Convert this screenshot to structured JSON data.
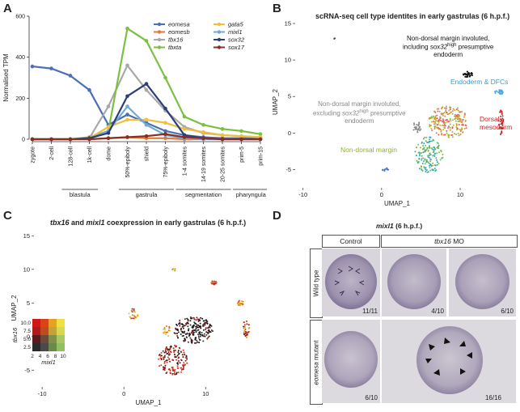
{
  "panel_letters": {
    "a": "A",
    "b": "B",
    "c": "C",
    "d": "D"
  },
  "chart_data": [
    {
      "type": "line",
      "ylabel": "Normalised TPM",
      "ylim": [
        0,
        600
      ],
      "yticks": [
        0,
        200,
        400,
        600
      ],
      "x": [
        "zygote",
        "2-cell",
        "128-cell",
        "1k-cell",
        "dome",
        "50%-epiboly",
        "shield",
        "75%-epiboly",
        "1-4 somites",
        "14-19 somites",
        "20-25 somites",
        "prim-5",
        "prim-15"
      ],
      "stage_groups": [
        {
          "label": "blastula",
          "from": "128-cell",
          "to": "1k-cell"
        },
        {
          "label": "gastrula",
          "from": "50%-epiboly",
          "to": "75%-epiboly"
        },
        {
          "label": "segmentation",
          "from": "1-4 somites",
          "to": "20-25 somites"
        },
        {
          "label": "pharyngula",
          "from": "prim-5",
          "to": "prim-15"
        }
      ],
      "legend_position": "top-right",
      "series": [
        {
          "name": "eomesa",
          "color": "#4a6fb5",
          "values": [
            355,
            345,
            310,
            240,
            70,
            120,
            80,
            40,
            20,
            10,
            5,
            5,
            5
          ]
        },
        {
          "name": "eomesb",
          "color": "#e07a3a",
          "values": [
            0,
            0,
            0,
            0,
            5,
            10,
            5,
            5,
            0,
            0,
            0,
            0,
            0
          ]
        },
        {
          "name": "tbx16",
          "color": "#a8a8a8",
          "values": [
            0,
            0,
            0,
            5,
            160,
            360,
            240,
            140,
            60,
            30,
            20,
            15,
            10
          ]
        },
        {
          "name": "tbxta",
          "color": "#7ac142",
          "values": [
            0,
            0,
            0,
            10,
            40,
            540,
            480,
            300,
            110,
            70,
            50,
            40,
            25
          ]
        },
        {
          "name": "gata5",
          "color": "#f2c038",
          "values": [
            0,
            0,
            0,
            5,
            60,
            95,
            95,
            80,
            50,
            35,
            20,
            15,
            10
          ]
        },
        {
          "name": "mixl1",
          "color": "#6fa8dc",
          "values": [
            0,
            0,
            0,
            5,
            40,
            160,
            70,
            20,
            5,
            0,
            0,
            0,
            0
          ]
        },
        {
          "name": "sox32",
          "color": "#2c3e7a",
          "values": [
            0,
            0,
            0,
            5,
            30,
            210,
            270,
            150,
            20,
            5,
            0,
            0,
            0
          ]
        },
        {
          "name": "sox17",
          "color": "#8b2e1f",
          "values": [
            0,
            0,
            0,
            0,
            5,
            10,
            15,
            25,
            10,
            5,
            0,
            0,
            0
          ]
        }
      ]
    },
    {
      "type": "scatter",
      "title": "scRNA-seq cell type identites in early gastrulas (6 h.p.f.)",
      "xlabel": "UMAP_1",
      "ylabel": "UMAP_2",
      "xlim": [
        -11,
        17
      ],
      "ylim": [
        -7.5,
        16
      ],
      "xticks": [
        -10,
        0,
        10
      ],
      "yticks": [
        -5,
        0,
        5,
        10,
        15
      ],
      "clusters": [
        {
          "name": "Non-dorsal margin",
          "color": "#8db32a"
        },
        {
          "name": "Endoderm & DFCs",
          "color": "#4aa8e0"
        },
        {
          "name": "Dorsal mesoderm",
          "color": "#cc2222"
        },
        {
          "name": "Non-dorsal margin involuted, including sox32 high presumptive endoderm",
          "color": "#111111"
        },
        {
          "name": "Non-dorsal margin involuted, excluding sox32 high presumptive endoderm",
          "color": "#888888"
        }
      ]
    },
    {
      "type": "scatter",
      "title": "tbx16 and mixl1 coexpression in early gastrulas (6 h.p.f.)",
      "xlabel": "UMAP_1",
      "ylabel": "UMAP_2",
      "xlim": [
        -11,
        17
      ],
      "ylim": [
        -7.5,
        16
      ],
      "xticks": [
        -10,
        0,
        10
      ],
      "yticks": [
        -5,
        0,
        5,
        10,
        15
      ],
      "colorkey": {
        "xlabel": "mixl1",
        "ylabel": "tbx16",
        "xticks": [
          2,
          4,
          6,
          8,
          10
        ],
        "yticks": [
          2.5,
          5.0,
          7.5,
          10.0
        ]
      }
    }
  ],
  "panelB": {
    "title": "scRNA-seq cell type identites in early gastrulas (6 h.p.f.)",
    "lbl_incl_1": "Non-dorsal margin involuted,",
    "lbl_incl_2a": "including ",
    "lbl_incl_gene": "sox32",
    "lbl_incl_sup": "high",
    "lbl_incl_2b": " presumptive",
    "lbl_incl_3": "endoderm",
    "lbl_endo": "Endoderm & DFCs",
    "lbl_dorsal_1": "Dorsal",
    "lbl_dorsal_2": "mesoderm",
    "lbl_excl_1": "Non-dorsal margin involuted,",
    "lbl_excl_2a": "excluding ",
    "lbl_excl_gene": "sox32",
    "lbl_excl_sup": "high",
    "lbl_excl_2b": " presumptive",
    "lbl_excl_3": "endoderm",
    "lbl_margin": "Non-dorsal margin"
  },
  "panelC": {
    "title_g1": "tbx16",
    "title_and": " and ",
    "title_g2": "mixl1",
    "title_rest": " coexpression in early gastrulas (6 h.p.f.)"
  },
  "panelD": {
    "title_gene": "mixl1",
    "title_rest": " (6 h.p.f.)",
    "col_control": "Control",
    "col_mo_gene": "tbx16",
    "col_mo_suffix": " MO",
    "row_wt": "Wild type",
    "row_mut_gene": "eomesa",
    "row_mut_suffix": " mutant",
    "count_1": "11/11",
    "count_2": "4/10",
    "count_3": "6/10",
    "count_4": "6/10",
    "count_5": "16/16"
  }
}
